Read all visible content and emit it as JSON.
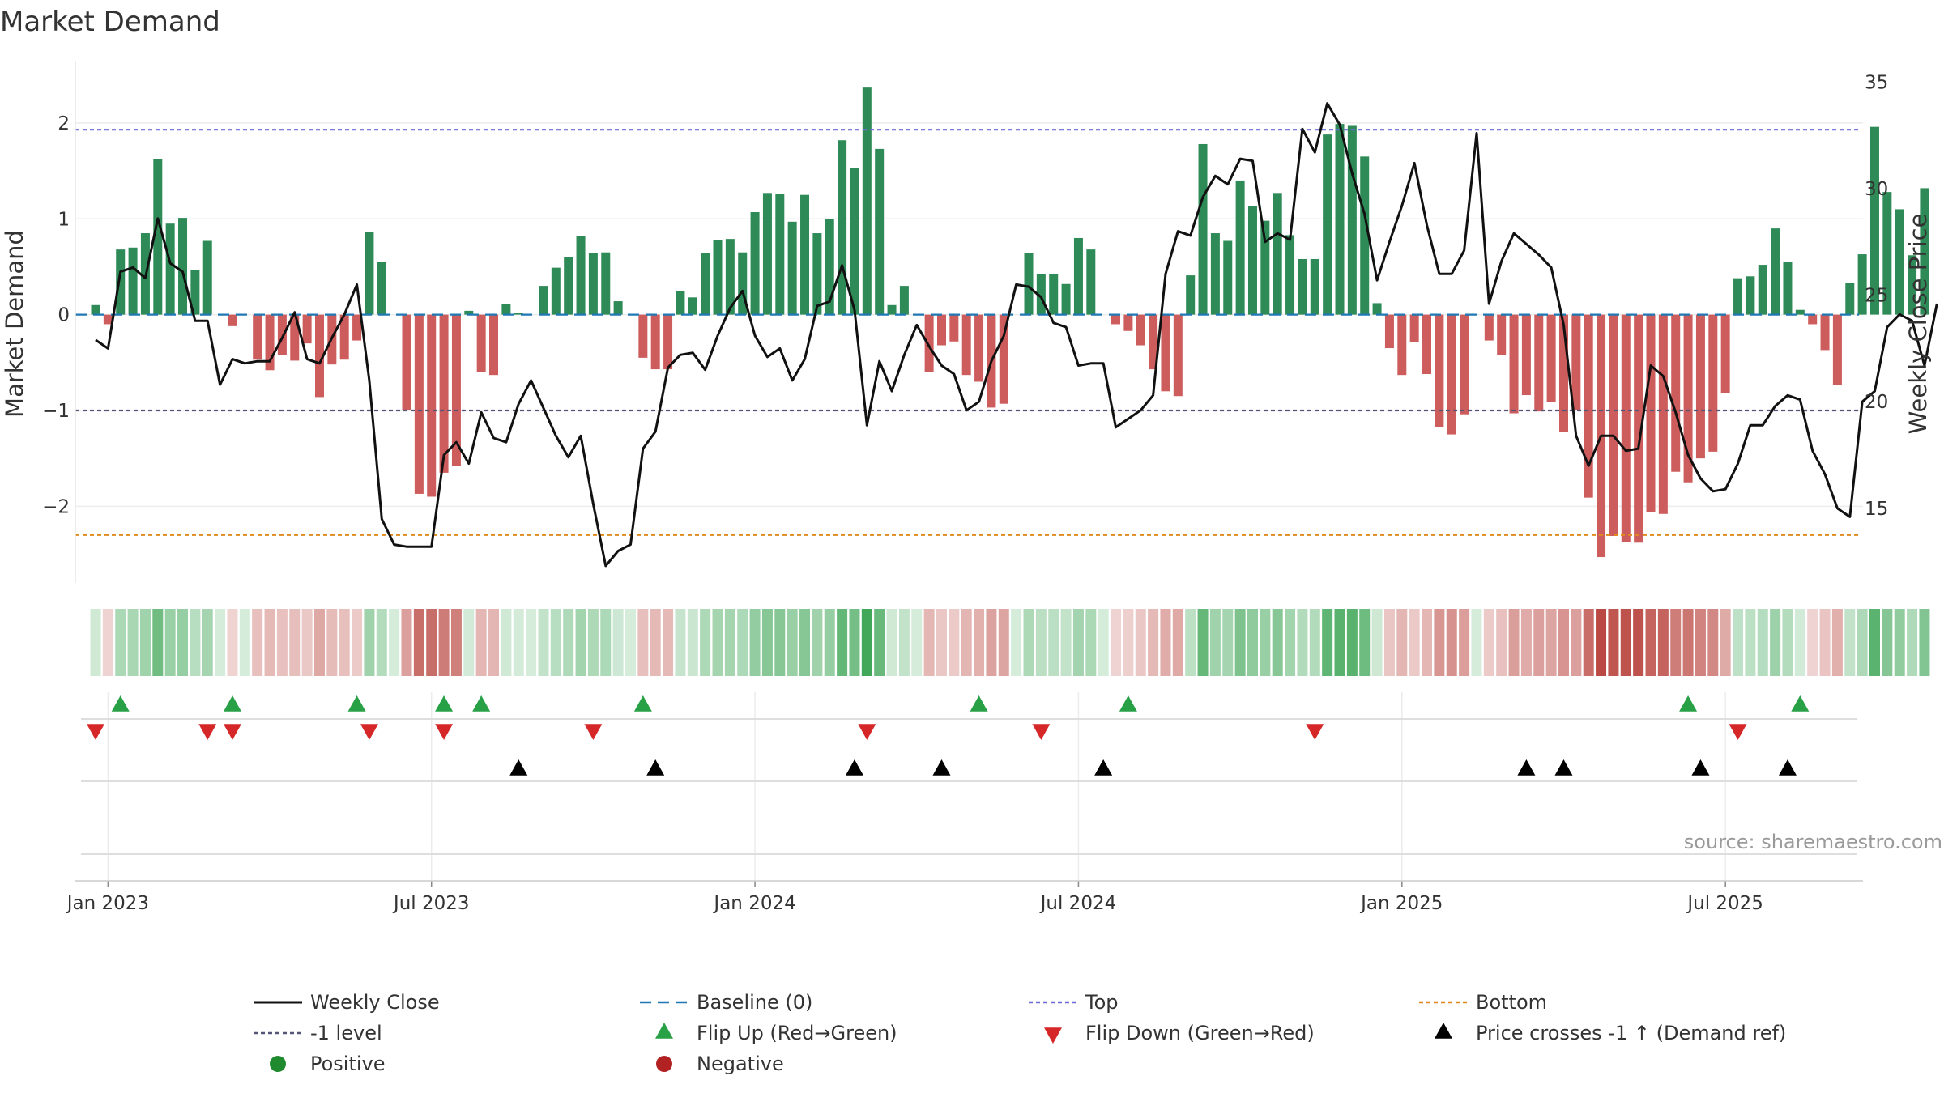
{
  "chart_data": {
    "type": "bar",
    "title": "Market Demand",
    "ylabel_left": "Market Demand",
    "ylabel_right": "Weekly Close Price",
    "ylim_left": [
      -2.8,
      2.65
    ],
    "ylim_right": [
      11.5,
      36.0
    ],
    "left_ticks": [
      2,
      1,
      0,
      -1,
      -2
    ],
    "right_ticks": [
      35,
      30,
      25,
      20,
      15
    ],
    "x_tick_labels": [
      "Jan 2023",
      "Jul 2023",
      "Jan 2024",
      "Jul 2024",
      "Jan 2025",
      "Jul 2025"
    ],
    "x_tick_weeks": [
      1,
      27,
      53,
      79,
      105,
      131
    ],
    "weeks": 144,
    "reference_lines": {
      "top": 1.93,
      "bottom": -2.3,
      "minus_one": -1,
      "baseline": 0
    },
    "demand": [
      0.1,
      -0.1,
      0.68,
      0.7,
      0.85,
      1.62,
      0.95,
      1.01,
      0.47,
      0.77,
      0.0,
      -0.12,
      0.0,
      -0.47,
      -0.58,
      -0.42,
      -0.48,
      -0.3,
      -0.86,
      -0.52,
      -0.47,
      -0.27,
      0.86,
      0.55,
      0.0,
      -1.0,
      -1.87,
      -1.9,
      -1.65,
      -1.58,
      0.04,
      -0.6,
      -0.63,
      0.11,
      0.02,
      0.0,
      0.3,
      0.49,
      0.6,
      0.82,
      0.64,
      0.65,
      0.14,
      0.0,
      -0.45,
      -0.57,
      -0.57,
      0.25,
      0.18,
      0.64,
      0.78,
      0.79,
      0.65,
      1.07,
      1.27,
      1.26,
      0.97,
      1.25,
      0.85,
      1.0,
      1.82,
      1.53,
      2.37,
      1.73,
      0.1,
      0.3,
      0.0,
      -0.6,
      -0.32,
      -0.28,
      -0.63,
      -0.7,
      -0.97,
      -0.93,
      0.0,
      0.64,
      0.42,
      0.42,
      0.32,
      0.8,
      0.68,
      0.0,
      -0.1,
      -0.17,
      -0.32,
      -0.57,
      -0.8,
      -0.85,
      0.41,
      1.78,
      0.85,
      0.77,
      1.4,
      1.13,
      0.98,
      1.27,
      0.83,
      0.58,
      0.58,
      1.88,
      1.99,
      1.97,
      1.65,
      0.12,
      -0.35,
      -0.63,
      -0.29,
      -0.62,
      -1.17,
      -1.25,
      -1.04,
      0.0,
      -0.27,
      -0.42,
      -1.03,
      -0.84,
      -1.01,
      -0.91,
      -1.22,
      -1.0,
      -1.91,
      -2.53,
      -2.31,
      -2.37,
      -2.38,
      -2.06,
      -2.08,
      -1.64,
      -1.75,
      -1.5,
      -1.43,
      -0.82,
      0.38,
      0.4,
      0.52,
      0.9,
      0.55,
      0.05,
      -0.1,
      -0.37,
      -0.73,
      0.33,
      0.63,
      1.96,
      1.28,
      1.1,
      0.62,
      1.32
    ],
    "price": [
      22.9,
      22.5,
      26.1,
      26.3,
      25.8,
      28.6,
      26.5,
      26.1,
      23.8,
      23.8,
      20.8,
      22.0,
      21.8,
      21.9,
      21.9,
      23.0,
      24.2,
      22.0,
      21.8,
      23.0,
      24.1,
      25.5,
      21.0,
      14.5,
      13.3,
      13.2,
      13.2,
      13.2,
      17.5,
      18.1,
      17.1,
      19.5,
      18.3,
      18.1,
      19.9,
      21.0,
      19.7,
      18.4,
      17.4,
      18.4,
      15.2,
      12.3,
      13.0,
      13.3,
      17.8,
      18.6,
      21.6,
      22.2,
      22.3,
      21.5,
      23.1,
      24.4,
      25.2,
      23.1,
      22.1,
      22.5,
      21.0,
      22.0,
      24.5,
      24.7,
      26.4,
      24.3,
      18.9,
      21.9,
      20.5,
      22.2,
      23.6,
      22.6,
      21.7,
      21.3,
      19.6,
      20.0,
      21.9,
      23.1,
      25.5,
      25.4,
      24.9,
      23.7,
      23.5,
      21.7,
      21.8,
      21.8,
      18.8,
      19.2,
      19.6,
      20.3,
      26.0,
      28.0,
      27.8,
      29.6,
      30.6,
      30.2,
      31.4,
      31.3,
      27.5,
      27.9,
      27.6,
      32.8,
      31.7,
      34.0,
      33.0,
      30.7,
      28.8,
      25.7,
      27.5,
      29.2,
      31.2,
      28.3,
      26.0,
      26.0,
      27.1,
      32.6,
      24.6,
      26.6,
      27.9,
      27.4,
      26.9,
      26.3,
      23.6,
      18.4,
      17.0,
      18.4,
      18.4,
      17.7,
      17.8,
      21.7,
      21.2,
      19.5,
      17.5,
      16.4,
      15.8,
      15.9,
      17.1,
      18.9,
      18.9,
      19.8,
      20.3,
      20.1,
      17.7,
      16.6,
      15.0,
      14.6,
      20.0,
      20.5,
      23.5,
      24.1,
      23.8,
      21.7,
      24.6
    ],
    "flip_up_weeks": [
      2,
      11,
      21,
      28,
      31,
      44,
      71,
      83,
      128,
      137
    ],
    "flip_down_weeks": [
      0,
      9,
      11,
      22,
      28,
      40,
      62,
      76,
      98,
      132
    ],
    "price_cross_weeks": [
      34,
      45,
      61,
      68,
      81,
      115,
      118,
      129,
      136
    ],
    "source": "source: sharemaestro.com",
    "legend": [
      {
        "label": "Weekly Close",
        "kind": "solid-line",
        "color": "#111111"
      },
      {
        "label": "Baseline (0)",
        "kind": "dash-line",
        "color": "#1f77b4"
      },
      {
        "label": "Top",
        "kind": "dot-line",
        "color": "#6a6ad8"
      },
      {
        "label": "Bottom",
        "kind": "dot-line",
        "color": "#e08a1e"
      },
      {
        "label": "-1 level",
        "kind": "dot-line",
        "color": "#555577"
      },
      {
        "label": "Flip Up (Red→Green)",
        "kind": "tri-up",
        "color": "#27a046"
      },
      {
        "label": "Flip Down (Green→Red)",
        "kind": "tri-down",
        "color": "#d62728"
      },
      {
        "label": "Price crosses -1 ↑ (Demand ref)",
        "kind": "tri-up",
        "color": "#000000"
      },
      {
        "label": "Positive",
        "kind": "circle",
        "color": "#1f8a2e"
      },
      {
        "label": "Negative",
        "kind": "circle",
        "color": "#b22222"
      }
    ],
    "colors": {
      "positive_bar": "#2e8b57",
      "negative_bar": "#cd5c5c",
      "price_line": "#111111",
      "heat_positive": "#2e9e48",
      "heat_negative": "#b8423b"
    }
  }
}
